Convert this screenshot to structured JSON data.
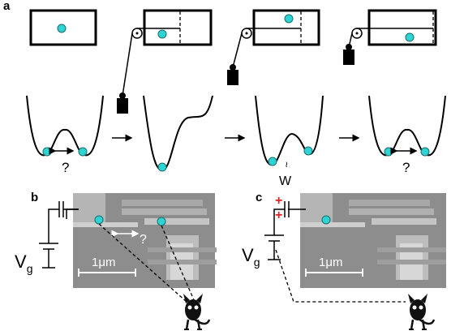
{
  "panel_a": {
    "label": "a",
    "question_left": "?",
    "question_right": "?",
    "work_tilde": "~",
    "work": "W"
  },
  "panel_b": {
    "label": "b",
    "gate": "V",
    "gate_sub": "g",
    "scale": "1μm",
    "question": "?"
  },
  "panel_c": {
    "label": "c",
    "gate": "V",
    "gate_sub": "g",
    "scale": "1μm",
    "charge_top": "+",
    "charge_bottom": "+"
  }
}
